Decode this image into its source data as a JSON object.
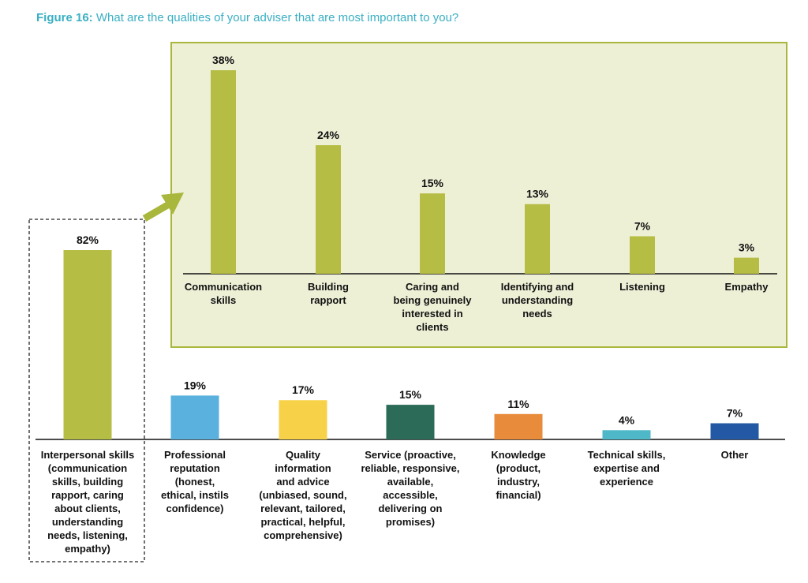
{
  "figure": {
    "number_label": "Figure 16:",
    "question": "What are the qualities of your adviser that are most important to you?"
  },
  "chart_data": [
    {
      "type": "bar",
      "name": "main",
      "categories": [
        [
          "Interpersonal skills",
          "(communication",
          "skills, building",
          "rapport, caring",
          "about clients,",
          "understanding",
          "needs, listening,",
          "empathy)"
        ],
        [
          "Professional",
          "reputation",
          "(honest,",
          "ethical, instils",
          "confidence)"
        ],
        [
          "Quality",
          "information",
          "and advice",
          "(unbiased, sound,",
          "relevant, tailored,",
          "practical, helpful,",
          "comprehensive)"
        ],
        [
          "Service (proactive,",
          "reliable, responsive,",
          "available,",
          "accessible,",
          "delivering on",
          "promises)"
        ],
        [
          "Knowledge",
          "(product,",
          "industry,",
          "financial)"
        ],
        [
          "Technical skills,",
          "expertise and",
          "experience"
        ],
        [
          "Other"
        ]
      ],
      "values": [
        82,
        19,
        17,
        15,
        11,
        4,
        7
      ],
      "value_labels": [
        "82%",
        "19%",
        "17%",
        "15%",
        "11%",
        "4%",
        "7%"
      ],
      "colors": [
        "#b5bd45",
        "#5ab1dd",
        "#f7d249",
        "#2b6b58",
        "#e88c3c",
        "#4eb8c9",
        "#2359a4"
      ],
      "ylim": [
        0,
        100
      ],
      "unit": "%"
    },
    {
      "type": "bar",
      "name": "inset-interpersonal-breakdown",
      "categories": [
        [
          "Communication",
          "skills"
        ],
        [
          "Building",
          "rapport"
        ],
        [
          "Caring and",
          "being genuinely",
          "interested in",
          "clients"
        ],
        [
          "Identifying and",
          "understanding",
          "needs"
        ],
        [
          "Listening"
        ],
        [
          "Empathy"
        ]
      ],
      "values": [
        38,
        24,
        15,
        13,
        7,
        3
      ],
      "value_labels": [
        "38%",
        "24%",
        "15%",
        "13%",
        "7%",
        "3%"
      ],
      "colors": [
        "#b5bd45",
        "#b5bd45",
        "#b5bd45",
        "#b5bd45",
        "#b5bd45",
        "#b5bd45"
      ],
      "ylim": [
        0,
        40
      ],
      "unit": "%"
    }
  ]
}
